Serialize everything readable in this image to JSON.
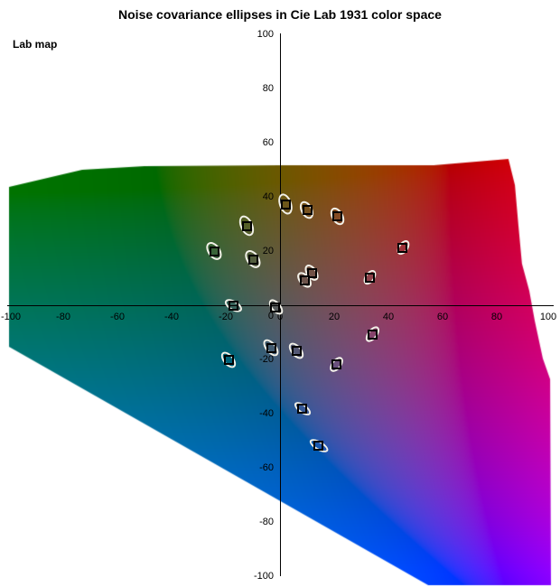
{
  "title": "Noise covariance ellipses in Cie Lab 1931 color space",
  "corner_label": "Lab map",
  "colors": {
    "page_bg": "#ffffff",
    "axis": "#000000",
    "tick_text": "#000000",
    "title_text": "#000000",
    "ellipse_stroke": "#f2f1e8",
    "marker_stroke": "#000000"
  },
  "chart_data": {
    "type": "scatter",
    "marker": "covariance-ellipse-with-square-center",
    "title": "Noise covariance ellipses in Cie Lab 1931 color space",
    "xlabel": "",
    "ylabel": "",
    "xlim": [
      -100,
      100
    ],
    "ylim": [
      -100,
      100
    ],
    "x_ticks": [
      -100,
      -80,
      -60,
      -40,
      -20,
      0,
      20,
      40,
      60,
      80,
      100
    ],
    "y_ticks": [
      100,
      80,
      60,
      40,
      20,
      0,
      -20,
      -40,
      -60,
      -80,
      -100
    ],
    "grid": false,
    "background": {
      "kind": "CIE Lab a*b* color slice clipped to gamut polygon",
      "L": 38,
      "gamut_polygon_ab": [
        [
          -100,
          43.7
        ],
        [
          -73,
          50
        ],
        [
          -50,
          51.3
        ],
        [
          0,
          51.7
        ],
        [
          56.7,
          51.7
        ],
        [
          84.3,
          54
        ],
        [
          86.7,
          44.3
        ],
        [
          88,
          29.3
        ],
        [
          89.3,
          15.3
        ],
        [
          92,
          5.3
        ],
        [
          94,
          -5.7
        ],
        [
          97,
          -19.7
        ],
        [
          99.7,
          -27.3
        ],
        [
          100,
          -103.3
        ],
        [
          54.7,
          -103.3
        ],
        [
          -100,
          -15.3
        ]
      ]
    },
    "ellipses": [
      {
        "a": 2,
        "b": 37.3,
        "semi_major": 4.0,
        "semi_minor": 2.3,
        "tilt_deg": -20
      },
      {
        "a": 10,
        "b": 35.3,
        "semi_major": 3.5,
        "semi_minor": 2.2,
        "tilt_deg": -28
      },
      {
        "a": 21.3,
        "b": 33,
        "semi_major": 3.5,
        "semi_minor": 2.2,
        "tilt_deg": -30
      },
      {
        "a": -12.3,
        "b": 29.3,
        "semi_major": 4.0,
        "semi_minor": 2.3,
        "tilt_deg": -25
      },
      {
        "a": -24.3,
        "b": 20,
        "semi_major": 3.7,
        "semi_minor": 2.3,
        "tilt_deg": -35
      },
      {
        "a": -10,
        "b": 17,
        "semi_major": 3.7,
        "semi_minor": 2.3,
        "tilt_deg": -35
      },
      {
        "a": 45.3,
        "b": 21.3,
        "semi_major": 3.0,
        "semi_minor": 1.8,
        "tilt_deg": 35
      },
      {
        "a": 11.7,
        "b": 12,
        "semi_major": 3.3,
        "semi_minor": 2.0,
        "tilt_deg": -35
      },
      {
        "a": 9,
        "b": 9.3,
        "semi_major": 3.3,
        "semi_minor": 2.0,
        "tilt_deg": -40
      },
      {
        "a": 33,
        "b": 10.3,
        "semi_major": 3.0,
        "semi_minor": 1.8,
        "tilt_deg": 35
      },
      {
        "a": -17.3,
        "b": -0.3,
        "semi_major": 3.5,
        "semi_minor": 1.8,
        "tilt_deg": -60
      },
      {
        "a": -1.7,
        "b": -0.7,
        "semi_major": 3.3,
        "semi_minor": 1.8,
        "tilt_deg": -40
      },
      {
        "a": -3.3,
        "b": -15.7,
        "semi_major": 3.7,
        "semi_minor": 2.0,
        "tilt_deg": -40
      },
      {
        "a": 6,
        "b": -16.7,
        "semi_major": 3.5,
        "semi_minor": 2.0,
        "tilt_deg": -40
      },
      {
        "a": 34,
        "b": -10.7,
        "semi_major": 3.3,
        "semi_minor": 1.8,
        "tilt_deg": 38
      },
      {
        "a": 20.7,
        "b": -21.7,
        "semi_major": 3.2,
        "semi_minor": 1.8,
        "tilt_deg": 38
      },
      {
        "a": -19,
        "b": -20.3,
        "semi_major": 3.5,
        "semi_minor": 2.0,
        "tilt_deg": -40
      },
      {
        "a": 8.3,
        "b": -38.3,
        "semi_major": 3.5,
        "semi_minor": 1.7,
        "tilt_deg": -55
      },
      {
        "a": 14.3,
        "b": -51.7,
        "semi_major": 3.8,
        "semi_minor": 1.7,
        "tilt_deg": -60
      }
    ]
  }
}
